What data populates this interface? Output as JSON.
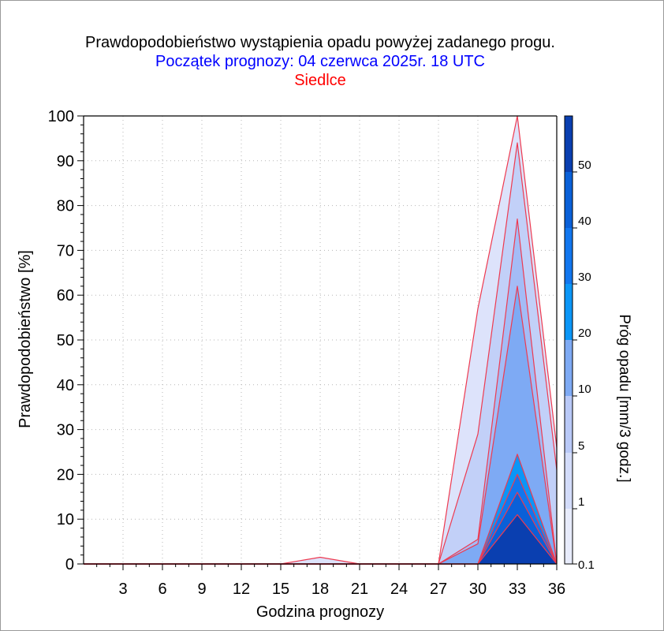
{
  "chart_data": {
    "type": "area",
    "title": "Prawdopodobieństwo wystąpienia opadu powyżej zadanego progu.",
    "subtitle": "Początek prognozy: 04 czerwca 2025r. 18 UTC",
    "location": "Siedlce",
    "xlabel": "Godzina prognozy",
    "ylabel": "Prawdopodobieństwo [%]",
    "colorbar_label": "Próg opadu [mm/3 godz.]",
    "xlim": [
      0,
      36
    ],
    "ylim": [
      0,
      100
    ],
    "x_ticks": [
      3,
      6,
      9,
      12,
      15,
      18,
      21,
      24,
      27,
      30,
      33,
      36
    ],
    "y_ticks": [
      0,
      10,
      20,
      30,
      40,
      50,
      60,
      70,
      80,
      90,
      100
    ],
    "grid": true,
    "x": [
      0,
      3,
      6,
      9,
      12,
      15,
      18,
      21,
      24,
      27,
      30,
      33,
      36
    ],
    "series": [
      {
        "name": "0.1",
        "color": "#dde3fb",
        "values": [
          0,
          0,
          0,
          0,
          0,
          0,
          1.5,
          0,
          0,
          0,
          57,
          100,
          26
        ]
      },
      {
        "name": "1",
        "color": "#c2d0f8",
        "values": [
          0,
          0,
          0,
          0,
          0,
          0,
          0,
          0,
          0,
          0,
          29,
          94,
          21
        ]
      },
      {
        "name": "5",
        "color": "#a4bcf6",
        "values": [
          0,
          0,
          0,
          0,
          0,
          0,
          0,
          0,
          0,
          0,
          5.5,
          77,
          0
        ]
      },
      {
        "name": "10",
        "color": "#7eaaf4",
        "values": [
          0,
          0,
          0,
          0,
          0,
          0,
          0,
          0,
          0,
          0,
          4.5,
          62,
          0
        ]
      },
      {
        "name": "20",
        "color": "#0b96f7",
        "values": [
          0,
          0,
          0,
          0,
          0,
          0,
          0,
          0,
          0,
          0,
          0,
          24.5,
          0
        ]
      },
      {
        "name": "30",
        "color": "#1176ee",
        "values": [
          0,
          0,
          0,
          0,
          0,
          0,
          0,
          0,
          0,
          0,
          0,
          20,
          0
        ]
      },
      {
        "name": "40",
        "color": "#0a60d8",
        "values": [
          0,
          0,
          0,
          0,
          0,
          0,
          0,
          0,
          0,
          0,
          0,
          16,
          0
        ]
      },
      {
        "name": "50",
        "color": "#0a3fb0",
        "values": [
          0,
          0,
          0,
          0,
          0,
          0,
          0,
          0,
          0,
          0,
          0,
          11,
          0
        ]
      }
    ],
    "colorbar": {
      "labels": [
        "0.1",
        "1",
        "5",
        "10",
        "20",
        "30",
        "40",
        "50"
      ],
      "colors": [
        "#e8ecfc",
        "#d3dcfa",
        "#b9c9f7",
        "#7eaaf4",
        "#0b96f7",
        "#1176ee",
        "#0a60d8",
        "#0a3fb0"
      ]
    },
    "outline_color": "#ee3a50"
  }
}
